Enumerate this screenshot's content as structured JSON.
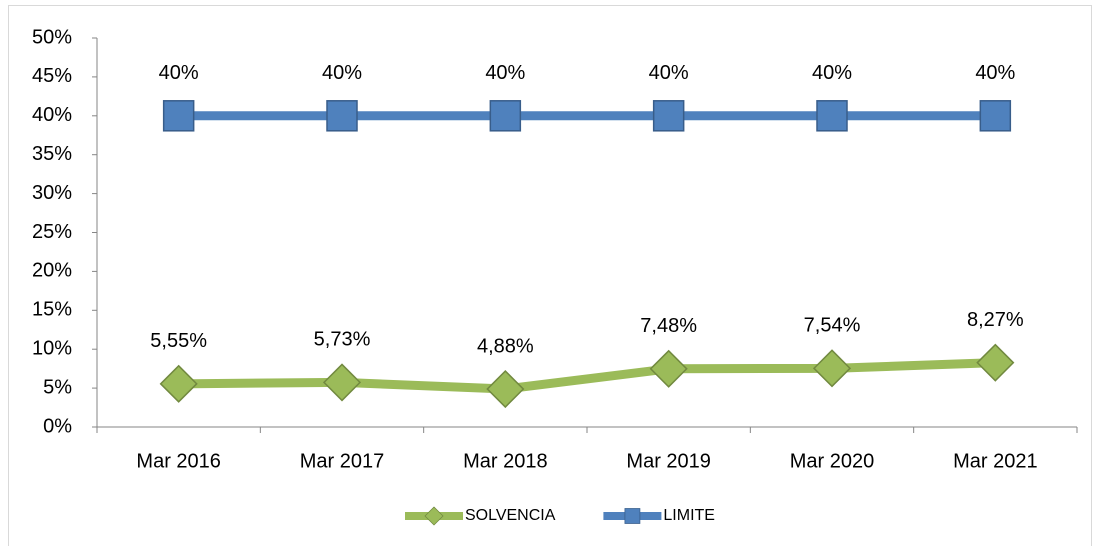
{
  "chart_data": {
    "type": "line",
    "categories": [
      "Mar 2016",
      "Mar 2017",
      "Mar 2018",
      "Mar 2019",
      "Mar 2020",
      "Mar 2021"
    ],
    "series": [
      {
        "name": "SOLVENCIA",
        "color": "#9bbb59",
        "values": [
          5.55,
          5.73,
          4.88,
          7.48,
          7.54,
          8.27
        ],
        "value_labels": [
          "5,55%",
          "5,73%",
          "4,88%",
          "7,48%",
          "7,54%",
          "8,27%"
        ]
      },
      {
        "name": "LIMITE",
        "color": "#4f81bd",
        "values": [
          40,
          40,
          40,
          40,
          40,
          40
        ],
        "value_labels": [
          "40%",
          "40%",
          "40%",
          "40%",
          "40%",
          "40%"
        ]
      }
    ],
    "ylim": [
      0,
      50
    ],
    "yticks": [
      {
        "value": 0,
        "label": "0%"
      },
      {
        "value": 5,
        "label": "5%"
      },
      {
        "value": 10,
        "label": "10%"
      },
      {
        "value": 15,
        "label": "15%"
      },
      {
        "value": 20,
        "label": "20%"
      },
      {
        "value": 25,
        "label": "25%"
      },
      {
        "value": 30,
        "label": "30%"
      },
      {
        "value": 35,
        "label": "35%"
      },
      {
        "value": 40,
        "label": "40%"
      },
      {
        "value": 45,
        "label": "45%"
      },
      {
        "value": 50,
        "label": "50%"
      }
    ],
    "grid": false,
    "legend": "bottom"
  }
}
